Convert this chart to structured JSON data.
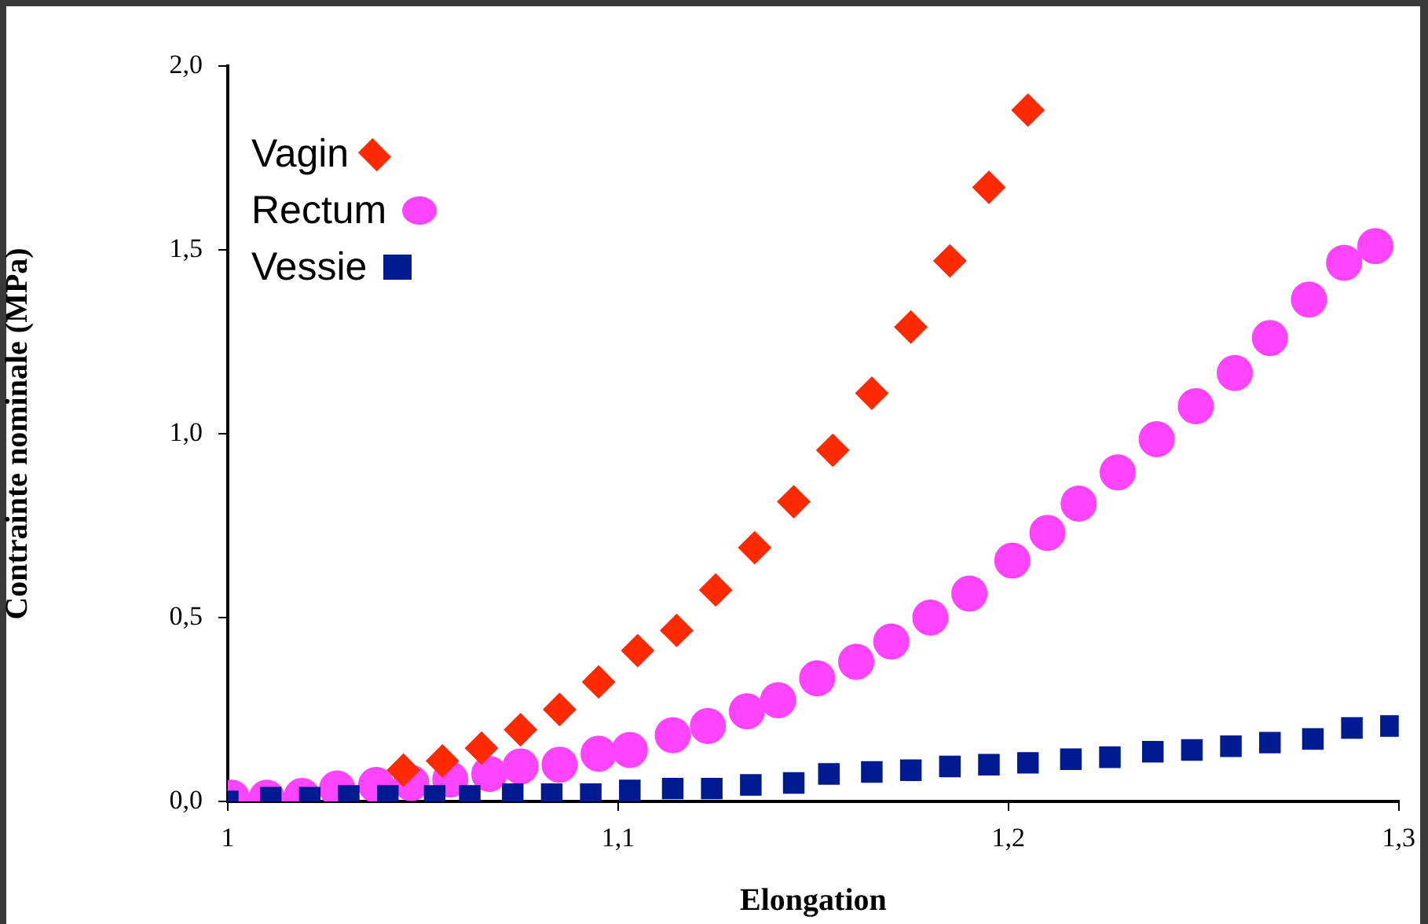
{
  "chart_data": {
    "type": "scatter",
    "xlabel": "Elongation",
    "ylabel": "Contrainte nominale (MPa)",
    "legend": "top left",
    "xlim": [
      1,
      1.3
    ],
    "xticks": [
      1,
      {
        "value": 1.1,
        "label": "1,1"
      },
      {
        "value": 1.2,
        "label": "1,2"
      },
      {
        "value": 1.3,
        "label": "1,3"
      }
    ],
    "ylim": [
      0,
      2
    ],
    "yticks": [
      {
        "value": 0,
        "label": "0,0"
      },
      {
        "value": 0.5,
        "label": "0,5"
      },
      {
        "value": 1,
        "label": "1,0"
      },
      {
        "value": 1.5,
        "label": "1,5"
      },
      {
        "value": 2,
        "label": "2,0"
      }
    ],
    "series": [
      {
        "name": "Vagin",
        "color": "#ff2a00",
        "marker": "diamond",
        "x": [
          1.045,
          1.055,
          1.065,
          1.075,
          1.085,
          1.095,
          1.105,
          1.115,
          1.125,
          1.135,
          1.145,
          1.155,
          1.165,
          1.175,
          1.185,
          1.195,
          1.205
        ],
        "values": [
          0.085,
          0.11,
          0.145,
          0.195,
          0.25,
          0.325,
          0.41,
          0.465,
          0.575,
          0.69,
          0.815,
          0.955,
          1.11,
          1.29,
          1.47,
          1.67,
          1.88
        ]
      },
      {
        "name": "Rectum",
        "color": "#ff44ff",
        "marker": "circle",
        "x": [
          1.001,
          1.01,
          1.019,
          1.028,
          1.038,
          1.047,
          1.057,
          1.067,
          1.075,
          1.085,
          1.095,
          1.103,
          1.114,
          1.123,
          1.133,
          1.141,
          1.151,
          1.161,
          1.17,
          1.18,
          1.19,
          1.201,
          1.21,
          1.218,
          1.228,
          1.238,
          1.248,
          1.258,
          1.267,
          1.277,
          1.286,
          1.294
        ],
        "values": [
          0.01,
          0.01,
          0.015,
          0.035,
          0.045,
          0.05,
          0.06,
          0.075,
          0.095,
          0.1,
          0.13,
          0.14,
          0.18,
          0.205,
          0.245,
          0.275,
          0.335,
          0.38,
          0.435,
          0.5,
          0.565,
          0.655,
          0.73,
          0.81,
          0.895,
          0.985,
          1.075,
          1.165,
          1.26,
          1.365,
          1.465,
          1.51
        ]
      },
      {
        "name": "Vessie",
        "color": "#001a90",
        "marker": "square",
        "x": [
          1.0,
          1.011,
          1.021,
          1.031,
          1.041,
          1.053,
          1.062,
          1.073,
          1.083,
          1.093,
          1.103,
          1.114,
          1.124,
          1.134,
          1.145,
          1.154,
          1.165,
          1.175,
          1.185,
          1.195,
          1.205,
          1.216,
          1.226,
          1.237,
          1.247,
          1.257,
          1.267,
          1.278,
          1.288,
          1.298
        ],
        "values": [
          0,
          0.01,
          0.01,
          0.015,
          0.015,
          0.015,
          0.015,
          0.02,
          0.02,
          0.02,
          0.03,
          0.035,
          0.035,
          0.045,
          0.05,
          0.075,
          0.08,
          0.085,
          0.095,
          0.1,
          0.105,
          0.115,
          0.12,
          0.135,
          0.14,
          0.15,
          0.16,
          0.17,
          0.2,
          0.205
        ]
      }
    ]
  }
}
